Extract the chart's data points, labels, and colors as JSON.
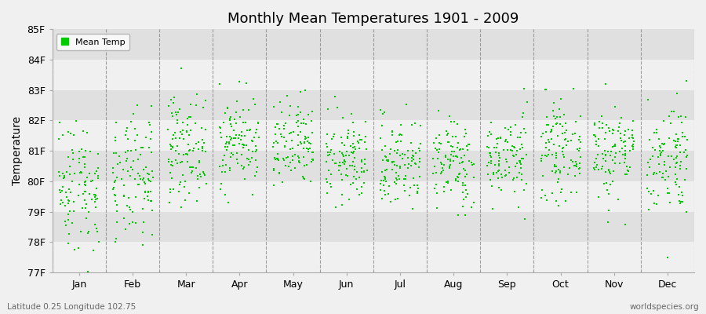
{
  "title": "Monthly Mean Temperatures 1901 - 2009",
  "ylabel": "Temperature",
  "xlabel_labels": [
    "Jan",
    "Feb",
    "Mar",
    "Apr",
    "May",
    "Jun",
    "Jul",
    "Aug",
    "Sep",
    "Oct",
    "Nov",
    "Dec"
  ],
  "bottom_left": "Latitude 0.25 Longitude 102.75",
  "bottom_right": "worldspecies.org",
  "ylim": [
    77,
    85
  ],
  "ytick_labels": [
    "77F",
    "78F",
    "79F",
    "80F",
    "81F",
    "82F",
    "83F",
    "84F",
    "85F"
  ],
  "ytick_values": [
    77,
    78,
    79,
    80,
    81,
    82,
    83,
    84,
    85
  ],
  "dot_color": "#00CC00",
  "dot_marker": "s",
  "dot_size": 3,
  "legend_label": "Mean Temp",
  "background_color": "#F0F0F0",
  "band_color_light": "#F0F0F0",
  "band_color_dark": "#E0E0E0",
  "years": 109,
  "monthly_means": [
    79.9,
    80.0,
    81.1,
    81.3,
    81.1,
    80.7,
    80.6,
    80.6,
    80.8,
    81.0,
    81.0,
    80.8
  ],
  "monthly_stds": [
    1.1,
    1.05,
    0.85,
    0.75,
    0.75,
    0.7,
    0.75,
    0.75,
    0.7,
    0.75,
    0.8,
    0.95
  ]
}
